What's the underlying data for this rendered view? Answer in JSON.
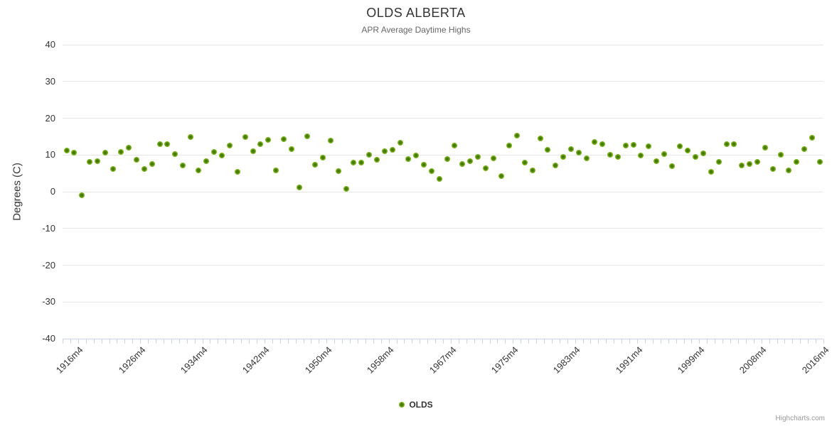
{
  "header": {
    "title": "OLDS ALBERTA",
    "subtitle": "APR Average Daytime Highs"
  },
  "chart_data": {
    "type": "scatter",
    "title": "OLDS ALBERTA",
    "subtitle": "APR Average Daytime Highs",
    "xlabel": "",
    "ylabel": "Degrees (C)",
    "ylim": [
      -40,
      40
    ],
    "y_ticks": [
      40,
      30,
      20,
      10,
      0,
      -10,
      -20,
      -30,
      -40
    ],
    "grid": "horizontal",
    "legend_position": "bottom-center",
    "x_tick_labels": [
      "1916m4",
      "1926m4",
      "1934m4",
      "1942m4",
      "1950m4",
      "1958m4",
      "1967m4",
      "1975m4",
      "1983m4",
      "1991m4",
      "1999m4",
      "2008m4",
      "2016m4"
    ],
    "series": [
      {
        "name": "OLDS",
        "marker_color": "#77b41e",
        "marker_center_color": "#4b7a00",
        "points": [
          [
            "1915m4",
            11.3
          ],
          [
            "1916m4",
            10.7
          ],
          [
            "1917m4",
            -0.9
          ],
          [
            "1920m4",
            8.1
          ],
          [
            "1921m4",
            8.4
          ],
          [
            "1922m4",
            10.6
          ],
          [
            "1923m4",
            6.1
          ],
          [
            "1924m4",
            10.9
          ],
          [
            "1925m4",
            11.9
          ],
          [
            "1926m4",
            8.8
          ],
          [
            "1927m4",
            6.1
          ],
          [
            "1928m4",
            7.6
          ],
          [
            "1929m4",
            12.9
          ],
          [
            "1930m4",
            13.0
          ],
          [
            "1931m4",
            10.3
          ],
          [
            "1932m4",
            7.1
          ],
          [
            "1933m4",
            14.8
          ],
          [
            "1934m4",
            5.8
          ],
          [
            "1935m4",
            8.3
          ],
          [
            "1936m4",
            10.8
          ],
          [
            "1937m4",
            9.9
          ],
          [
            "1938m4",
            12.6
          ],
          [
            "1939m4",
            5.4
          ],
          [
            "1940m4",
            14.9
          ],
          [
            "1941m4",
            11.0
          ],
          [
            "1942m4",
            12.9
          ],
          [
            "1943m4",
            14.1
          ],
          [
            "1944m4",
            5.8
          ],
          [
            "1945m4",
            14.3
          ],
          [
            "1946m4",
            11.7
          ],
          [
            "1947m4",
            1.2
          ],
          [
            "1948m4",
            15.0
          ],
          [
            "1949m4",
            7.4
          ],
          [
            "1950m4",
            9.2
          ],
          [
            "1951m4",
            13.9
          ],
          [
            "1952m4",
            5.7
          ],
          [
            "1953m4",
            0.7
          ],
          [
            "1954m4",
            7.9
          ],
          [
            "1955m4",
            7.9
          ],
          [
            "1956m4",
            10.1
          ],
          [
            "1957m4",
            8.7
          ],
          [
            "1958m4",
            11.0
          ],
          [
            "1959m4",
            11.5
          ],
          [
            "1961m4",
            13.4
          ],
          [
            "1962m4",
            8.9
          ],
          [
            "1963m4",
            9.8
          ],
          [
            "1964m4",
            7.4
          ],
          [
            "1965m4",
            5.6
          ],
          [
            "1966m4",
            3.5
          ],
          [
            "1967m4",
            8.9
          ],
          [
            "1968m4",
            12.6
          ],
          [
            "1969m4",
            7.6
          ],
          [
            "1970m4",
            8.4
          ],
          [
            "1971m4",
            9.5
          ],
          [
            "1972m4",
            6.3
          ],
          [
            "1973m4",
            9.0
          ],
          [
            "1974m4",
            4.3
          ],
          [
            "1975m4",
            12.5
          ],
          [
            "1976m4",
            15.3
          ],
          [
            "1977m4",
            7.9
          ],
          [
            "1978m4",
            5.9
          ],
          [
            "1979m4",
            14.5
          ],
          [
            "1980m4",
            11.5
          ],
          [
            "1981m4",
            7.1
          ],
          [
            "1982m4",
            9.5
          ],
          [
            "1983m4",
            11.6
          ],
          [
            "1984m4",
            10.6
          ],
          [
            "1985m4",
            9.0
          ],
          [
            "1986m4",
            13.5
          ],
          [
            "1987m4",
            12.9
          ],
          [
            "1988m4",
            10.0
          ],
          [
            "1989m4",
            9.5
          ],
          [
            "1990m4",
            12.6
          ],
          [
            "1991m4",
            12.7
          ],
          [
            "1992m4",
            9.8
          ],
          [
            "1993m4",
            12.4
          ],
          [
            "1994m4",
            8.4
          ],
          [
            "1995m4",
            10.2
          ],
          [
            "1996m4",
            6.9
          ],
          [
            "1997m4",
            12.4
          ],
          [
            "1998m4",
            11.2
          ],
          [
            "1999m4",
            9.5
          ],
          [
            "2000m4",
            10.5
          ],
          [
            "2002m4",
            5.5
          ],
          [
            "2003m4",
            8.2
          ],
          [
            "2004m4",
            12.9
          ],
          [
            "2005m4",
            13.0
          ],
          [
            "2006m4",
            7.2
          ],
          [
            "2007m4",
            7.5
          ],
          [
            "2008m4",
            8.2
          ],
          [
            "2009m4",
            11.9
          ],
          [
            "2010m4",
            6.2
          ],
          [
            "2011m4",
            10.0
          ],
          [
            "2012m4",
            5.8
          ],
          [
            "2013m4",
            8.1
          ],
          [
            "2014m4",
            11.7
          ],
          [
            "2015m4",
            14.7
          ],
          [
            "2016m4",
            8.2
          ]
        ]
      }
    ]
  },
  "legend": {
    "items": [
      {
        "label": "OLDS",
        "color": "#77b41e"
      }
    ]
  },
  "credit": {
    "label": "Highcharts.com"
  },
  "colors": {
    "grid": "#e6e6e6",
    "axis_line": "#ccd6eb",
    "marker_outer": "#77b41e",
    "marker_inner": "#4b7a00",
    "title": "#333333",
    "subtitle": "#666666",
    "axis_labels": "#333333",
    "credit": "#999999",
    "background": "#ffffff"
  }
}
